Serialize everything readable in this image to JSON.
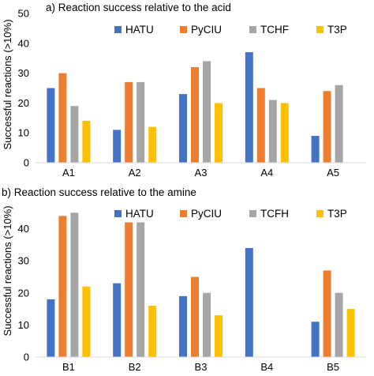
{
  "chart_data": [
    {
      "type": "bar",
      "title": "a) Reaction success relative to the acid",
      "ylabel": "Successful reactions (>10%)",
      "xlabel": "",
      "categories": [
        "A1",
        "A2",
        "A3",
        "A4",
        "A5"
      ],
      "ylim": [
        0,
        50
      ],
      "yticks": [
        0,
        10,
        20,
        30,
        40,
        50
      ],
      "grid": false,
      "legend_position": "top-right",
      "series": [
        {
          "name": "HATU",
          "color": "#4472C4",
          "values": [
            25,
            11,
            23,
            37,
            9
          ]
        },
        {
          "name": "PyCIU",
          "color": "#ED7D31",
          "values": [
            30,
            27,
            32,
            25,
            24
          ]
        },
        {
          "name": "TCHF",
          "color": "#A5A5A5",
          "values": [
            19,
            27,
            34,
            21,
            26
          ]
        },
        {
          "name": "T3P",
          "color": "#FFC000",
          "values": [
            14,
            12,
            20,
            20,
            0
          ]
        }
      ]
    },
    {
      "type": "bar",
      "title": "b) Reaction success relative to the amine",
      "ylabel": "Successful reactions (>10%)",
      "xlabel": "",
      "categories": [
        "B1",
        "B2",
        "B3",
        "B4",
        "B5"
      ],
      "ylim": [
        0,
        50
      ],
      "yticks": [
        0,
        10,
        20,
        30,
        40
      ],
      "grid": false,
      "legend_position": "top-right",
      "series": [
        {
          "name": "HATU",
          "color": "#4472C4",
          "values": [
            18,
            23,
            19,
            34,
            11
          ]
        },
        {
          "name": "PyCIU",
          "color": "#ED7D31",
          "values": [
            44,
            42,
            25,
            0,
            27
          ]
        },
        {
          "name": "TCFH",
          "color": "#A5A5A5",
          "values": [
            45,
            42,
            20,
            0,
            20
          ]
        },
        {
          "name": "T3P",
          "color": "#FFC000",
          "values": [
            22,
            16,
            13,
            0,
            15
          ]
        }
      ]
    }
  ]
}
